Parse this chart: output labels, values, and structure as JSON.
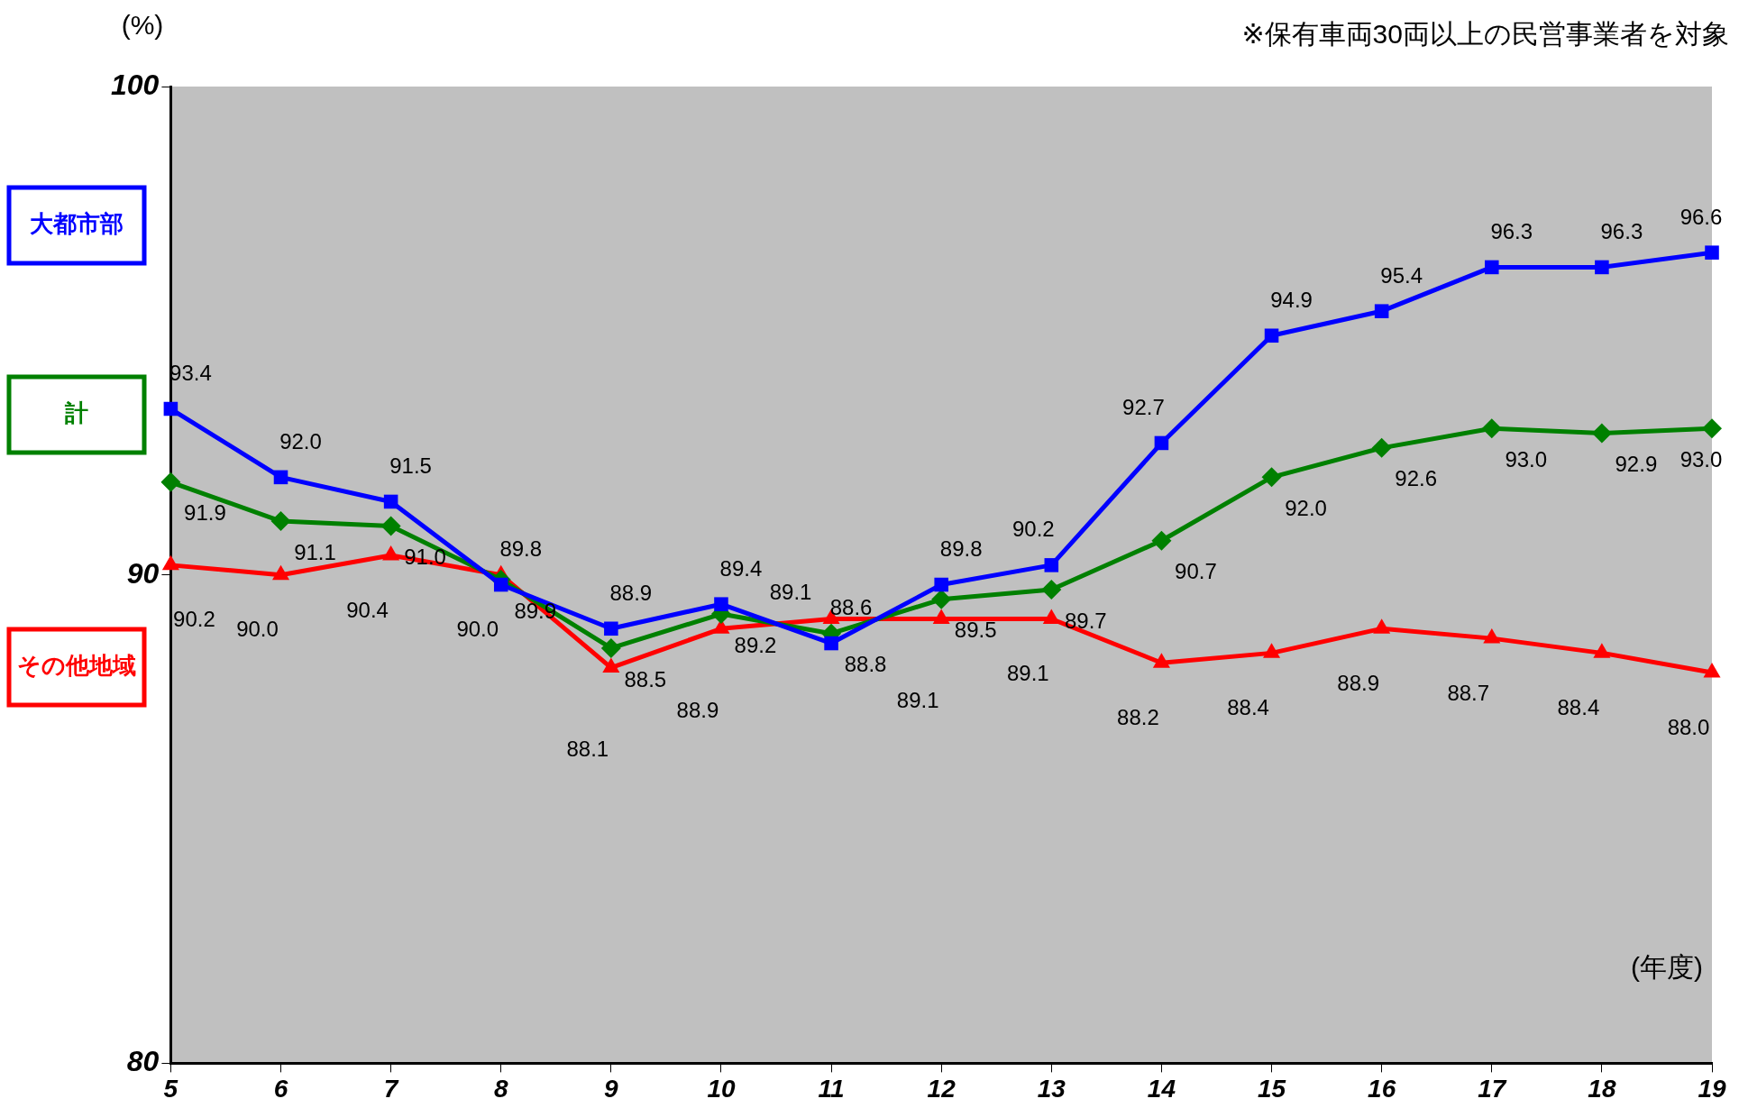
{
  "chart_data": {
    "type": "line",
    "ylabel": "(%)",
    "xlabel": "(年度)",
    "annotations": [
      "※保有車両30両以上の民営事業者を対象"
    ],
    "categories": [
      "5",
      "6",
      "7",
      "8",
      "9",
      "10",
      "11",
      "12",
      "13",
      "14",
      "15",
      "16",
      "17",
      "18",
      "19"
    ],
    "ylim": [
      80,
      100
    ],
    "yticks": [
      80,
      90,
      100
    ],
    "grid": false,
    "legend": "left",
    "data_labels": true,
    "line_style": "solid",
    "series": [
      {
        "name": "大都市部",
        "color": "#0000ff",
        "marker": "square",
        "values": [
          93.4,
          92.0,
          91.5,
          89.8,
          88.9,
          89.4,
          88.6,
          89.8,
          90.2,
          92.7,
          94.9,
          95.4,
          96.3,
          96.3,
          96.6
        ],
        "value_labels": [
          "93.4",
          "92.0",
          "91.5",
          "89.8",
          "88.9",
          "89.4",
          "88.6",
          "89.8",
          "90.2",
          "92.7",
          "94.9",
          "95.4",
          "96.3",
          "96.3",
          "96.6"
        ]
      },
      {
        "name": "計",
        "color": "#008000",
        "marker": "diamond",
        "values": [
          91.9,
          91.1,
          91.0,
          89.9,
          88.5,
          89.2,
          88.8,
          89.5,
          89.7,
          90.7,
          92.0,
          92.6,
          93.0,
          92.9,
          93.0
        ],
        "value_labels": [
          "91.9",
          "91.1",
          "91.0",
          "89.9",
          "88.5",
          "89.2",
          "88.8",
          "89.5",
          "89.7",
          "90.7",
          "92.0",
          "92.6",
          "93.0",
          "92.9",
          "93.0"
        ]
      },
      {
        "name": "その他地域",
        "color": "#ff0000",
        "marker": "triangle",
        "values": [
          90.2,
          90.0,
          90.4,
          90.0,
          88.1,
          88.9,
          89.1,
          89.1,
          89.1,
          88.2,
          88.4,
          88.9,
          88.7,
          88.4,
          88.0
        ],
        "value_labels": [
          "90.2",
          "90.0",
          "90.4",
          "90.0",
          "88.1",
          "88.9",
          "89.1",
          "89.1",
          "89.1",
          "88.2",
          "88.4",
          "88.9",
          "88.7",
          "88.4",
          "88.0"
        ]
      }
    ]
  }
}
